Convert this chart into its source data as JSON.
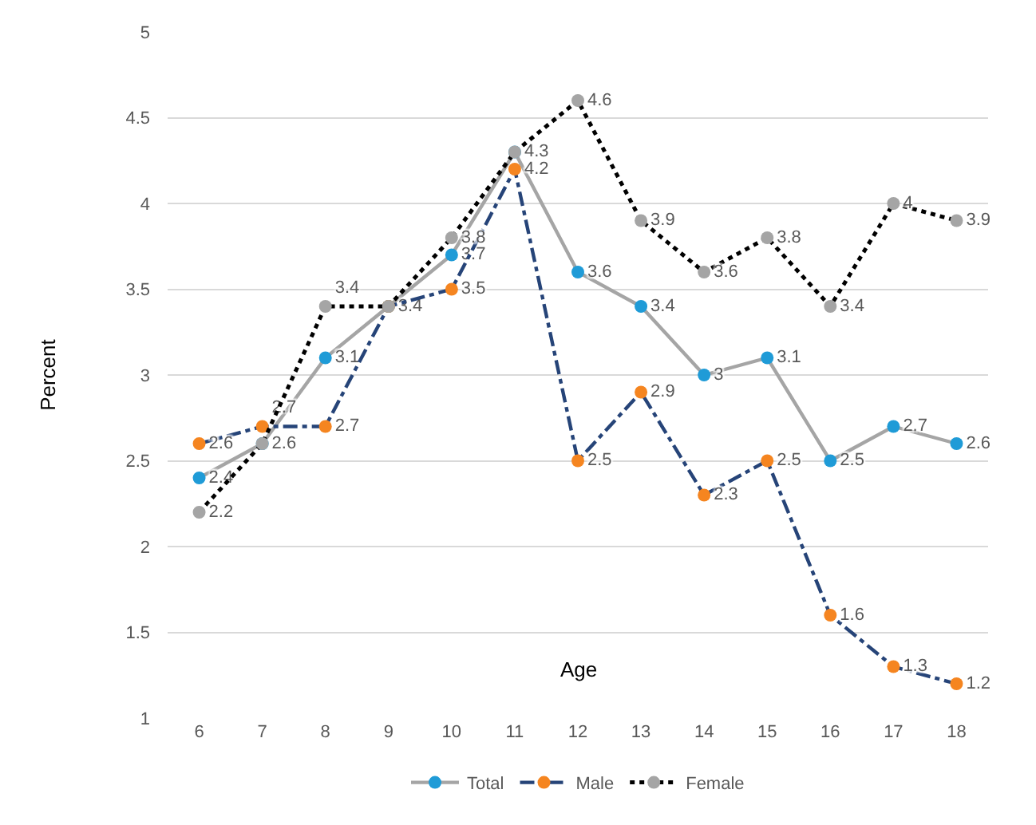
{
  "chart_data": {
    "type": "line",
    "xlabel": "Age",
    "ylabel": "Percent",
    "x": [
      6,
      7,
      8,
      9,
      10,
      11,
      12,
      13,
      14,
      15,
      16,
      17,
      18
    ],
    "xlim": [
      5.5,
      18.5
    ],
    "xticks": [
      6,
      7,
      8,
      9,
      10,
      11,
      12,
      13,
      14,
      15,
      16,
      17,
      18
    ],
    "ylim": [
      1,
      5
    ],
    "yticks": [
      1,
      1.5,
      2,
      2.5,
      3,
      3.5,
      4,
      4.5,
      5
    ],
    "grid": "y",
    "legend": "bottom",
    "marker": "circle",
    "series": [
      {
        "name": "Total",
        "color": "#a5a5a5",
        "colors": [
          "#1f9bd7",
          "#1f9bd7",
          "#1f9bd7",
          "#1f9bd7",
          "#1f9bd7",
          "#1f9bd7",
          "#1f9bd7",
          "#1f9bd7",
          "#1f9bd7",
          "#1f9bd7",
          "#1f9bd7",
          "#1f9bd7",
          "#1f9bd7"
        ],
        "line_style": "solid",
        "values": [
          2.4,
          2.6,
          3.1,
          3.4,
          3.7,
          4.3,
          3.6,
          3.4,
          3,
          3.1,
          2.5,
          2.7,
          2.6
        ],
        "value_labels": [
          "2.4",
          "2.6",
          "3.1",
          "3.4",
          "3.7",
          "4.3",
          "3.6",
          "3.4",
          "3",
          "3.1",
          "2.5",
          "2.7",
          "2.6"
        ]
      },
      {
        "name": "Male",
        "color": "#264478",
        "colors": [
          "#f58520",
          "#f58520",
          "#f58520",
          "#f58520",
          "#f58520",
          "#f58520",
          "#f58520",
          "#f58520",
          "#f58520",
          "#f58520",
          "#f58520",
          "#f58520",
          "#f58520"
        ],
        "line_style": "dashdot",
        "values": [
          2.6,
          2.7,
          2.7,
          3.4,
          3.5,
          4.2,
          2.5,
          2.9,
          2.3,
          2.5,
          1.6,
          1.3,
          1.2
        ],
        "value_labels": [
          "2.6",
          "2.7",
          "2.7",
          null,
          "3.5",
          "4.2",
          "2.5",
          "2.9",
          "2.3",
          "2.5",
          "1.6",
          "1.3",
          "1.2"
        ]
      },
      {
        "name": "Female",
        "color": "#000000",
        "colors": [
          "#a5a5a5",
          "#a5a5a5",
          "#a5a5a5",
          "#a5a5a5",
          "#a5a5a5",
          "#a5a5a5",
          "#a5a5a5",
          "#a5a5a5",
          "#a5a5a5",
          "#a5a5a5",
          "#a5a5a5",
          "#a5a5a5",
          "#a5a5a5"
        ],
        "line_style": "dotted",
        "values": [
          2.2,
          2.6,
          3.4,
          3.4,
          3.8,
          4.3,
          4.6,
          3.9,
          3.6,
          3.8,
          3.4,
          4,
          3.9
        ],
        "value_labels": [
          "2.2",
          null,
          "3.4",
          null,
          "3.8",
          null,
          "4.6",
          "3.9",
          "3.6",
          "3.8",
          "3.4",
          "4",
          "3.9"
        ]
      }
    ]
  }
}
